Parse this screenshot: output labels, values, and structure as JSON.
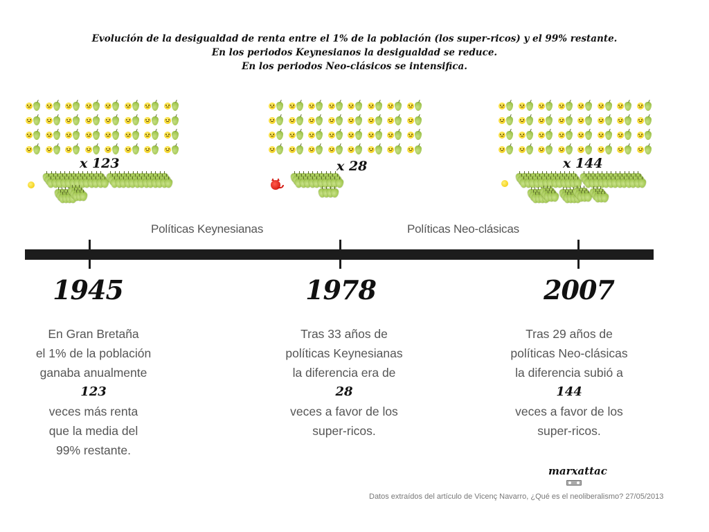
{
  "title": {
    "line1": "Evolución de la desigualdad de renta entre el 1% de la población (los super-ricos) y el 99% restante.",
    "line2": "En los periodos Keynesianos la desigualdad se reduce.",
    "line3": "En los periodos Neo-clásicos se intensifica."
  },
  "colors": {
    "timeline": "#1c1c1c",
    "face": "#f5d21c",
    "pear": "#9dc34a",
    "devil": "#d41a12",
    "body_text": "#555555"
  },
  "panels": [
    {
      "multiplier": "x 123",
      "rich_icon": "smiley-face-icon",
      "grid_icon_pair": [
        "worried-face-icon",
        "pear-icon"
      ],
      "grid_rows": 4,
      "grid_cols": 8
    },
    {
      "multiplier": "x 28",
      "rich_icon": "devil-face-icon",
      "grid_icon_pair": [
        "worried-face-icon",
        "pear-icon"
      ],
      "grid_rows": 4,
      "grid_cols": 8
    },
    {
      "multiplier": "x 144",
      "rich_icon": "smiley-face-icon",
      "grid_icon_pair": [
        "worried-face-icon",
        "pear-icon"
      ],
      "grid_rows": 4,
      "grid_cols": 8
    }
  ],
  "periods": [
    {
      "label": "Políticas Keynesianas"
    },
    {
      "label": "Políticas Neo-clásicas"
    }
  ],
  "milestones": [
    {
      "year": "1945",
      "lines_before": [
        "En Gran Bretaña",
        "el 1% de la población",
        "ganaba anualmente"
      ],
      "number": "123",
      "lines_after": [
        "veces más renta",
        "que la media del",
        "99% restante."
      ]
    },
    {
      "year": "1978",
      "lines_before": [
        "Tras 33 años de",
        "políticas Keynesianas",
        "la diferencia era de"
      ],
      "number": "28",
      "lines_after": [
        "veces a favor de los",
        "super-ricos."
      ]
    },
    {
      "year": "2007",
      "lines_before": [
        "Tras 29 años de",
        "políticas Neo-clásicas",
        "la diferencia subió a"
      ],
      "number": "144",
      "lines_after": [
        "veces a favor de los",
        "super-ricos."
      ]
    }
  ],
  "footer": {
    "brand": "marxattac",
    "license_icon": "creative-commons-icon",
    "source": "Datos extraídos del artículo de Vicenç Navarro, ¿Qué es el neoliberalismo? 27/05/2013"
  }
}
